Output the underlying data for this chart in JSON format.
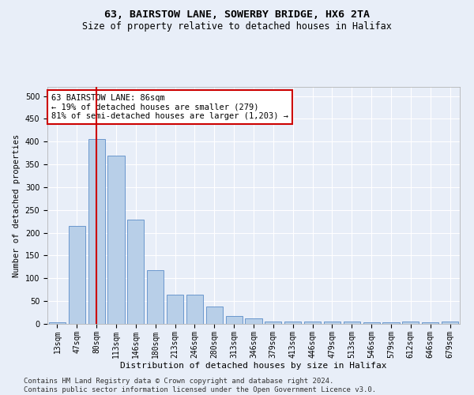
{
  "title": "63, BAIRSTOW LANE, SOWERBY BRIDGE, HX6 2TA",
  "subtitle": "Size of property relative to detached houses in Halifax",
  "xlabel": "Distribution of detached houses by size in Halifax",
  "ylabel": "Number of detached properties",
  "categories": [
    "13sqm",
    "47sqm",
    "80sqm",
    "113sqm",
    "146sqm",
    "180sqm",
    "213sqm",
    "246sqm",
    "280sqm",
    "313sqm",
    "346sqm",
    "379sqm",
    "413sqm",
    "446sqm",
    "479sqm",
    "513sqm",
    "546sqm",
    "579sqm",
    "612sqm",
    "646sqm",
    "679sqm"
  ],
  "values": [
    3,
    215,
    405,
    370,
    228,
    118,
    65,
    65,
    38,
    17,
    12,
    5,
    5,
    5,
    5,
    5,
    3,
    3,
    6,
    3,
    5
  ],
  "bar_color": "#b8cfe8",
  "bar_edge_color": "#5b8cc8",
  "vline_color": "#cc0000",
  "vline_x": 2.0,
  "annotation_text": "63 BAIRSTOW LANE: 86sqm\n← 19% of detached houses are smaller (279)\n81% of semi-detached houses are larger (1,203) →",
  "annotation_box_color": "#ffffff",
  "annotation_box_edge": "#cc0000",
  "annotation_fontsize": 7.5,
  "title_fontsize": 9.5,
  "subtitle_fontsize": 8.5,
  "xlabel_fontsize": 8,
  "ylabel_fontsize": 7.5,
  "tick_fontsize": 7,
  "footer_text": "Contains HM Land Registry data © Crown copyright and database right 2024.\nContains public sector information licensed under the Open Government Licence v3.0.",
  "footer_fontsize": 6.5,
  "ylim": [
    0,
    520
  ],
  "background_color": "#e8eef8",
  "plot_bg_color": "#e8eef8",
  "grid_color": "#ffffff"
}
